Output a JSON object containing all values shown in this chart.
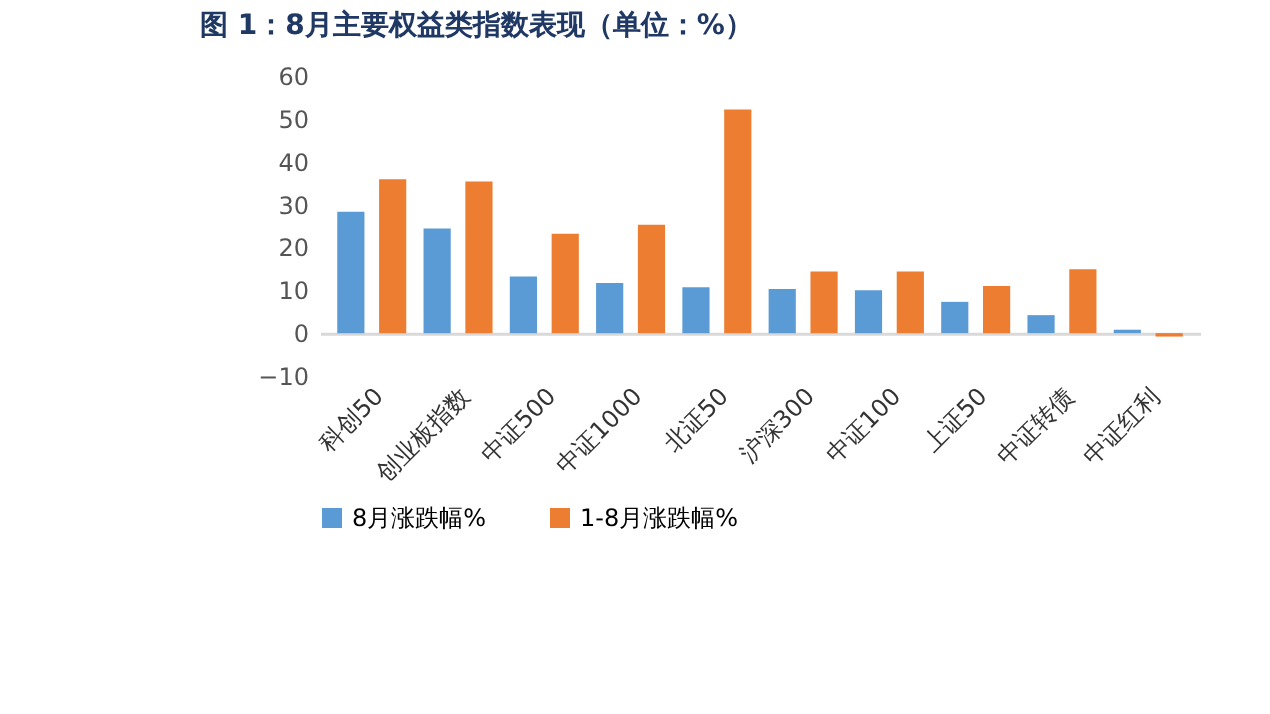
{
  "chart_data": {
    "type": "bar",
    "title": "图 1：8月主要权益类指数表现（单位：%）",
    "categories": [
      "科创50",
      "创业板指数",
      "中证500",
      "中证1000",
      "北证50",
      "沪深300",
      "中证100",
      "上证50",
      "中证转债",
      "中证红利"
    ],
    "series": [
      {
        "name": "8月涨跌幅%",
        "color": "#5b9bd5",
        "values": [
          28.3,
          24.4,
          13.2,
          11.7,
          10.7,
          10.3,
          10.0,
          7.3,
          4.2,
          0.8
        ]
      },
      {
        "name": "1-8月涨跌幅%",
        "color": "#ed7d31",
        "values": [
          35.9,
          35.4,
          23.2,
          25.3,
          52.2,
          14.4,
          14.4,
          11.0,
          14.9,
          -0.8
        ]
      }
    ],
    "ylim": [
      -10,
      60
    ],
    "yticks": [
      -10,
      0,
      10,
      20,
      30,
      40,
      50,
      60
    ],
    "grid": false,
    "legend": "bottom"
  }
}
